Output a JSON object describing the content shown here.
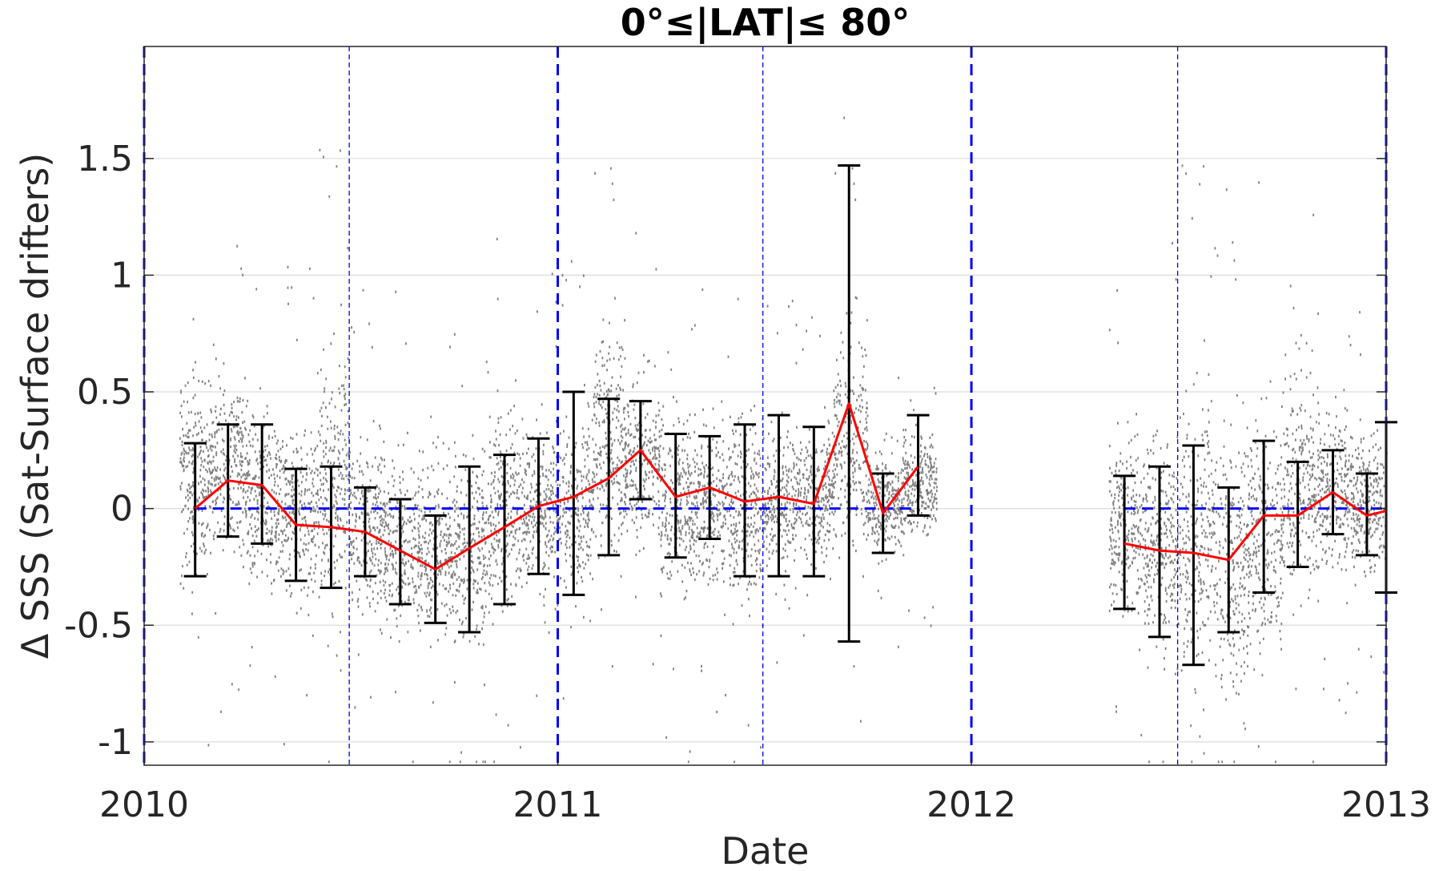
{
  "chart_data": {
    "type": "line",
    "title": "0°≤|LAT|≤ 80°",
    "xlabel": "Date",
    "ylabel": "Δ SSS (Sat-Surface drifters)",
    "xlim": [
      "2010-01-01",
      "2013-01-01"
    ],
    "ylim": [
      -1.1,
      1.98
    ],
    "x_ticks": [
      "2010",
      "2011",
      "2012",
      "2013"
    ],
    "y_ticks": [
      -1,
      -0.5,
      0,
      0.5,
      1,
      1.5
    ],
    "y_tick_labels": [
      "-1",
      "-0.5",
      "0",
      "0.5",
      "1",
      "1.5"
    ],
    "grid": "horizontal",
    "legend": "none",
    "year_boundary_lines": [
      "2010-01-01",
      "2011-01-01",
      "2012-01-01",
      "2013-01-01"
    ],
    "mid_year_lines": [
      "2010-07-01",
      "2011-07-01",
      "2012-07-01"
    ],
    "zero_reference": 0,
    "series": [
      {
        "role": "mean_with_std",
        "segments": [
          {
            "x": [
              "2010-02-15",
              "2010-03-16",
              "2010-04-15",
              "2010-05-15",
              "2010-06-15",
              "2010-07-15",
              "2010-08-15",
              "2010-09-15",
              "2010-10-15",
              "2010-11-15",
              "2010-12-15",
              "2011-01-15",
              "2011-02-15",
              "2011-03-15",
              "2011-04-15",
              "2011-05-15",
              "2011-06-15",
              "2011-07-15",
              "2011-08-15",
              "2011-09-15",
              "2011-10-15",
              "2011-11-15"
            ],
            "mean": [
              0.0,
              0.12,
              0.1,
              -0.07,
              -0.08,
              -0.1,
              -0.18,
              -0.26,
              -0.17,
              -0.08,
              0.01,
              0.05,
              0.13,
              0.25,
              0.05,
              0.09,
              0.03,
              0.05,
              0.02,
              0.45,
              -0.02,
              0.18
            ],
            "std_low": [
              -0.29,
              -0.12,
              -0.15,
              -0.31,
              -0.34,
              -0.29,
              -0.41,
              -0.49,
              -0.53,
              -0.41,
              -0.28,
              -0.37,
              -0.2,
              0.04,
              -0.21,
              -0.13,
              -0.29,
              -0.29,
              -0.29,
              -0.57,
              -0.19,
              -0.03
            ],
            "std_high": [
              0.28,
              0.36,
              0.36,
              0.17,
              0.18,
              0.09,
              0.04,
              -0.03,
              0.18,
              0.23,
              0.3,
              0.5,
              0.47,
              0.46,
              0.32,
              0.31,
              0.36,
              0.4,
              0.35,
              1.47,
              0.15,
              0.4
            ]
          },
          {
            "x": [
              "2012-05-15",
              "2012-06-15",
              "2012-07-15",
              "2012-08-15",
              "2012-09-15",
              "2012-10-15",
              "2012-11-15",
              "2012-12-15",
              "2013-01-01"
            ],
            "mean": [
              -0.15,
              -0.18,
              -0.19,
              -0.22,
              -0.03,
              -0.03,
              0.07,
              -0.03,
              -0.01
            ],
            "std_low": [
              -0.43,
              -0.55,
              -0.67,
              -0.53,
              -0.36,
              -0.25,
              -0.11,
              -0.2,
              -0.36
            ],
            "std_high": [
              0.14,
              0.18,
              0.27,
              0.09,
              0.29,
              0.2,
              0.25,
              0.15,
              0.37
            ]
          }
        ]
      },
      {
        "role": "individual_differences",
        "note_colors": "#808080",
        "envelope": [
          {
            "x": "2010-02",
            "low": -0.45,
            "high": 0.75
          },
          {
            "x": "2010-03",
            "low": -0.4,
            "high": 0.75
          },
          {
            "x": "2010-04",
            "low": -0.5,
            "high": 0.6
          },
          {
            "x": "2010-05",
            "low": -0.55,
            "high": 0.55
          },
          {
            "x": "2010-06",
            "low": -0.65,
            "high": 0.9
          },
          {
            "x": "2010-07",
            "low": -0.6,
            "high": 0.45
          },
          {
            "x": "2010-08",
            "low": -0.7,
            "high": 0.4
          },
          {
            "x": "2010-09",
            "low": -0.7,
            "high": 0.35
          },
          {
            "x": "2010-10",
            "low": -0.75,
            "high": 0.4
          },
          {
            "x": "2010-11",
            "low": -0.6,
            "high": 0.6
          },
          {
            "x": "2010-12",
            "low": -0.5,
            "high": 0.55
          },
          {
            "x": "2011-01",
            "low": -0.55,
            "high": 0.55
          },
          {
            "x": "2011-02",
            "low": -0.4,
            "high": 1.0
          },
          {
            "x": "2011-03",
            "low": -0.3,
            "high": 0.7
          },
          {
            "x": "2011-04",
            "low": -0.55,
            "high": 0.55
          },
          {
            "x": "2011-05",
            "low": -0.45,
            "high": 0.5
          },
          {
            "x": "2011-06",
            "low": -0.6,
            "high": 0.6
          },
          {
            "x": "2011-07",
            "low": -0.4,
            "high": 0.5
          },
          {
            "x": "2011-08",
            "low": -0.35,
            "high": 0.45
          },
          {
            "x": "2011-09",
            "low": -0.4,
            "high": 1.0
          },
          {
            "x": "2011-10",
            "low": -0.3,
            "high": 0.35
          },
          {
            "x": "2011-11",
            "low": -0.2,
            "high": 0.4
          },
          {
            "x": "2012-05",
            "low": -0.6,
            "high": 0.45
          },
          {
            "x": "2012-06",
            "low": -0.8,
            "high": 0.55
          },
          {
            "x": "2012-07",
            "low": -1.0,
            "high": 0.75
          },
          {
            "x": "2012-08",
            "low": -1.05,
            "high": 0.6
          },
          {
            "x": "2012-09",
            "low": -0.9,
            "high": 0.65
          },
          {
            "x": "2012-10",
            "low": -0.6,
            "high": 0.8
          },
          {
            "x": "2012-11",
            "low": -0.4,
            "high": 0.55
          },
          {
            "x": "2012-12",
            "low": -0.4,
            "high": 0.45
          }
        ]
      }
    ],
    "colors": {
      "mean_line": "#ff0000",
      "error_bars": "#000000",
      "scatter": "#808080",
      "reference_lines": "#0000ff",
      "grid": "#dcdcdc",
      "axes": "#262626"
    }
  }
}
